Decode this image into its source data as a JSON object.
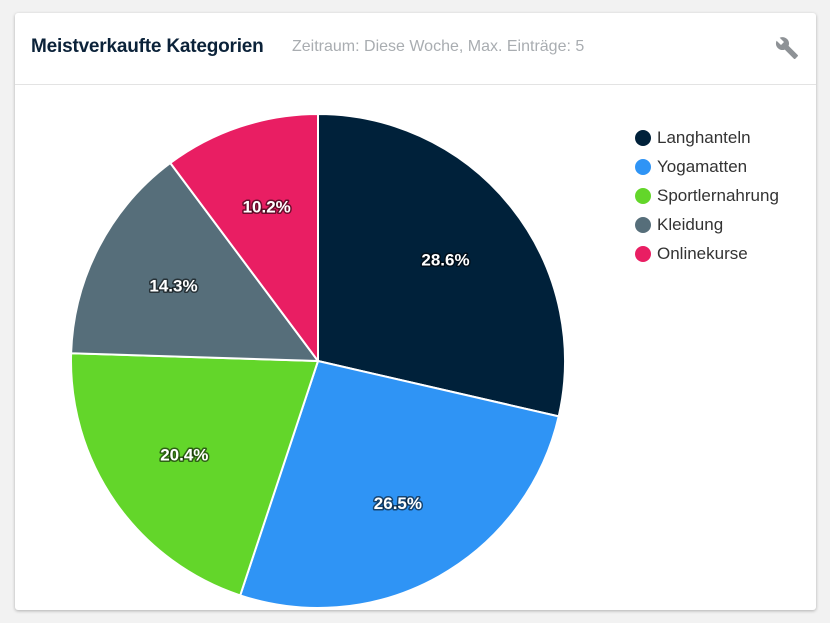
{
  "widget": {
    "title": "Meistverkaufte Kategorien",
    "subtitle": "Zeitraum: Diese Woche, Max. Einträge: 5",
    "settings_icon": "wrench-icon"
  },
  "chart_data": {
    "type": "pie",
    "categories": [
      "Langhanteln",
      "Yogamatten",
      "Sportlernahrung",
      "Kleidung",
      "Onlinekurse"
    ],
    "values": [
      28.6,
      26.5,
      20.4,
      14.3,
      10.2
    ],
    "labels": [
      "28.6%",
      "26.5%",
      "20.4%",
      "14.3%",
      "10.2%"
    ],
    "colors": [
      "#00213a",
      "#2f94f5",
      "#63d62a",
      "#566e7a",
      "#e91e63"
    ],
    "start_angle": "12 o'clock",
    "direction": "clockwise",
    "legend_position": "top-right"
  }
}
